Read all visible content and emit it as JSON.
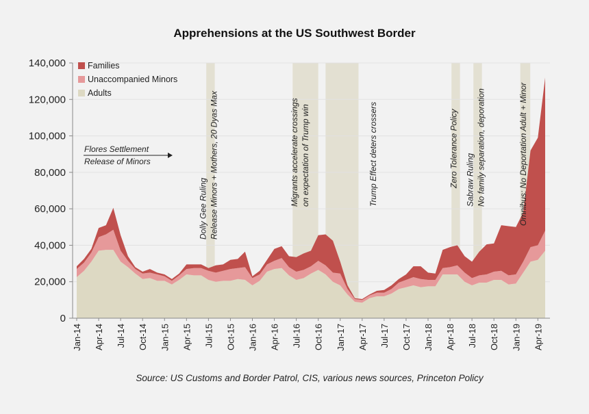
{
  "chart_data": {
    "type": "area",
    "stacked": true,
    "title": "Apprehensions at the US Southwest Border",
    "source": "Source: US Customs and Border Patrol, CIS, various news sources, Princeton Policy",
    "ylim": [
      0,
      140000
    ],
    "yticks": [
      0,
      20000,
      40000,
      60000,
      80000,
      100000,
      120000,
      140000
    ],
    "ytick_labels": [
      "0",
      "20,000",
      "40,000",
      "60,000",
      "80,000",
      "100,000",
      "120,000",
      "140,000"
    ],
    "x_tick_labels": [
      "Jan-14",
      "Apr-14",
      "Jul-14",
      "Oct-14",
      "Jan-15",
      "Apr-15",
      "Jul-15",
      "Oct-15",
      "Jan-16",
      "Apr-16",
      "Jul-16",
      "Oct-16",
      "Jan-17",
      "Apr-17",
      "Jul-17",
      "Oct-17",
      "Jan-18",
      "Apr-18",
      "Jul-18",
      "Oct-18",
      "Jan-19",
      "Apr-19"
    ],
    "months": [
      "Jan-14",
      "Feb-14",
      "Mar-14",
      "Apr-14",
      "May-14",
      "Jun-14",
      "Jul-14",
      "Aug-14",
      "Sep-14",
      "Oct-14",
      "Nov-14",
      "Dec-14",
      "Jan-15",
      "Feb-15",
      "Mar-15",
      "Apr-15",
      "May-15",
      "Jun-15",
      "Jul-15",
      "Aug-15",
      "Sep-15",
      "Oct-15",
      "Nov-15",
      "Dec-15",
      "Jan-16",
      "Feb-16",
      "Mar-16",
      "Apr-16",
      "May-16",
      "Jun-16",
      "Jul-16",
      "Aug-16",
      "Sep-16",
      "Oct-16",
      "Nov-16",
      "Dec-16",
      "Jan-17",
      "Feb-17",
      "Mar-17",
      "Apr-17",
      "May-17",
      "Jun-17",
      "Jul-17",
      "Aug-17",
      "Sep-17",
      "Oct-17",
      "Nov-17",
      "Dec-17",
      "Jan-18",
      "Feb-18",
      "Mar-18",
      "Apr-18",
      "May-18",
      "Jun-18",
      "Jul-18",
      "Aug-18",
      "Sep-18",
      "Oct-18",
      "Nov-18",
      "Dec-18",
      "Jan-19",
      "Feb-19",
      "Mar-19",
      "Apr-19",
      "May-19"
    ],
    "series": [
      {
        "name": "Adults",
        "color": "#ddd9c3",
        "values": [
          22500,
          26000,
          31000,
          37000,
          37500,
          37500,
          31000,
          28000,
          24500,
          21500,
          22000,
          20500,
          20500,
          18500,
          21000,
          24000,
          23500,
          23500,
          21000,
          20000,
          20500,
          20500,
          21500,
          21000,
          18000,
          20500,
          25500,
          27000,
          27500,
          23500,
          21000,
          22000,
          24500,
          26500,
          24000,
          20000,
          18000,
          13000,
          9000,
          8500,
          11000,
          12000,
          12000,
          13500,
          16000,
          17000,
          18000,
          17000,
          17500,
          17500,
          24000,
          24000,
          24000,
          20000,
          18000,
          19500,
          19500,
          21000,
          21000,
          18500,
          19000,
          25000,
          31000,
          32000,
          37000
        ]
      },
      {
        "name": "Unaccompanied Minors",
        "color": "#e6999a",
        "values": [
          4500,
          4500,
          5000,
          7500,
          8500,
          11000,
          6000,
          3500,
          2500,
          3000,
          3000,
          3500,
          2500,
          2000,
          2500,
          3000,
          4000,
          4000,
          5000,
          5000,
          5500,
          6500,
          6000,
          7000,
          4000,
          3500,
          4000,
          4500,
          5500,
          4500,
          4500,
          4500,
          4000,
          5000,
          5000,
          5000,
          6500,
          3000,
          1500,
          1500,
          1500,
          2000,
          2000,
          2500,
          3500,
          4000,
          4500,
          4500,
          3500,
          3500,
          3500,
          4000,
          5000,
          5000,
          4000,
          4000,
          4500,
          4500,
          5000,
          5000,
          5000,
          6000,
          8000,
          8000,
          11000
        ]
      },
      {
        "name": "Families",
        "color": "#c0504d",
        "values": [
          1500,
          2000,
          2000,
          5000,
          5000,
          12000,
          8500,
          2500,
          1000,
          1000,
          2000,
          1000,
          1000,
          1000,
          1000,
          2500,
          2000,
          2000,
          1500,
          4000,
          3500,
          5000,
          5000,
          8500,
          1000,
          2000,
          2500,
          6500,
          6500,
          6000,
          8000,
          9000,
          8500,
          14000,
          17000,
          17500,
          6500,
          2000,
          500,
          500,
          500,
          1000,
          1500,
          2000,
          2000,
          3000,
          6000,
          7000,
          4000,
          3500,
          10000,
          11000,
          11000,
          9000,
          9000,
          13000,
          16500,
          15500,
          25000,
          27000,
          26000,
          27000,
          53000,
          59000,
          84000
        ]
      }
    ],
    "events": [
      {
        "index": 13,
        "label_lines": [
          "Flores Settlement",
          "Release of Minors"
        ]
      },
      {
        "index": 18,
        "label_lines": [
          "Dolly Gee Ruling",
          "Release Minors + Mothers, 20 Dyas Max"
        ]
      },
      {
        "index": 30.5,
        "label_lines": [
          "Migrants accelerate crossings",
          "on expectation of Trump win"
        ]
      },
      {
        "index": 40.5,
        "label_lines": [
          "Trump Effect deters crossers"
        ]
      },
      {
        "index": 51.5,
        "label_lines": [
          "Zero Tolerance Policy"
        ]
      },
      {
        "index": 54.5,
        "label_lines": [
          "Sabraw Ruling",
          "No family separation, deporation"
        ]
      },
      {
        "index": 61,
        "label_lines": [
          "Omnibus: No Deportation Adult + Minor"
        ]
      }
    ],
    "legend": {
      "position": "top-left",
      "entries": [
        "Families",
        "Unaccompanied Minors",
        "Adults"
      ]
    }
  }
}
